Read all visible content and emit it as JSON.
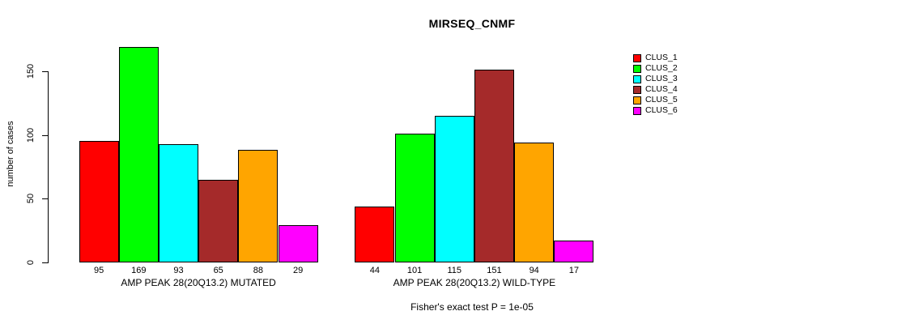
{
  "title": "MIRSEQ_CNMF",
  "footnote": "Fisher's exact test P = 1e-05",
  "y_axis": {
    "label": "number of cases",
    "ticks": [
      0,
      50,
      100,
      150
    ]
  },
  "legend": {
    "position": "right",
    "items": [
      {
        "label": "CLUS_1",
        "color": "#FF0000"
      },
      {
        "label": "CLUS_2",
        "color": "#00FF00"
      },
      {
        "label": "CLUS_3",
        "color": "#00FFFF"
      },
      {
        "label": "CLUS_4",
        "color": "#A52A2A"
      },
      {
        "label": "CLUS_5",
        "color": "#FFA500"
      },
      {
        "label": "CLUS_6",
        "color": "#FF00FF"
      }
    ]
  },
  "chart_data": {
    "type": "bar",
    "title": "MIRSEQ_CNMF",
    "xlabel": "",
    "ylabel": "number of cases",
    "ylim": [
      0,
      150
    ],
    "yticks": [
      0,
      50,
      100,
      150
    ],
    "grid": false,
    "legend_position": "right",
    "categories": [
      "CLUS_1",
      "CLUS_2",
      "CLUS_3",
      "CLUS_4",
      "CLUS_5",
      "CLUS_6"
    ],
    "colors": [
      "#FF0000",
      "#00FF00",
      "#00FFFF",
      "#A52A2A",
      "#FFA500",
      "#FF00FF"
    ],
    "groups": [
      {
        "label": "AMP PEAK 28(20Q13.2) MUTATED",
        "values": [
          95,
          169,
          93,
          65,
          88,
          29
        ]
      },
      {
        "label": "AMP PEAK 28(20Q13.2) WILD-TYPE",
        "values": [
          44,
          101,
          115,
          151,
          94,
          17
        ]
      }
    ],
    "bar_values_shown": true,
    "annotation": "Fisher's exact test P = 1e-05"
  }
}
